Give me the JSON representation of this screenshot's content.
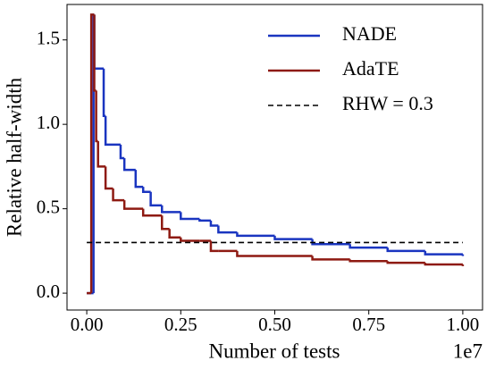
{
  "chart_data": {
    "type": "line",
    "step": "post",
    "xlabel": "Number of tests",
    "ylabel": "Relative half-width",
    "x_offset_label": "1e7",
    "xlim": [
      -525000,
      10525000
    ],
    "ylim": [
      -0.1,
      1.71
    ],
    "xticks": [
      {
        "value": 0,
        "label": "0.00"
      },
      {
        "value": 2500000,
        "label": "0.25"
      },
      {
        "value": 5000000,
        "label": "0.50"
      },
      {
        "value": 7500000,
        "label": "0.75"
      },
      {
        "value": 10000000,
        "label": "1.00"
      }
    ],
    "yticks": [
      {
        "value": 0,
        "label": "0.0"
      },
      0.5,
      {
        "value": 1,
        "label": "1.0"
      },
      1.5
    ],
    "legend": "upper right",
    "series": [
      {
        "name": "NADE",
        "color": "#1a35c0",
        "x": [
          0,
          180000,
          200000,
          450000,
          500000,
          900000,
          1000000,
          1300000,
          1500000,
          1700000,
          2000000,
          2500000,
          3000000,
          3300000,
          3500000,
          4000000,
          5000000,
          6000000,
          7000000,
          8000000,
          9000000,
          10000000
        ],
        "values": [
          0,
          1.65,
          1.33,
          1.05,
          0.88,
          0.8,
          0.73,
          0.63,
          0.6,
          0.52,
          0.48,
          0.44,
          0.43,
          0.4,
          0.36,
          0.34,
          0.32,
          0.29,
          0.27,
          0.25,
          0.23,
          0.22
        ]
      },
      {
        "name": "AdaTE",
        "color": "#8e1a12",
        "x": [
          0,
          120000,
          200000,
          250000,
          300000,
          500000,
          700000,
          1000000,
          1500000,
          2000000,
          2200000,
          2500000,
          3000000,
          3300000,
          3500000,
          4000000,
          5000000,
          6000000,
          7000000,
          8000000,
          9000000,
          10000000
        ],
        "values": [
          0,
          1.65,
          1.2,
          0.9,
          0.75,
          0.62,
          0.55,
          0.5,
          0.46,
          0.38,
          0.33,
          0.31,
          0.31,
          0.25,
          0.25,
          0.22,
          0.22,
          0.2,
          0.19,
          0.18,
          0.17,
          0.16
        ]
      }
    ],
    "reference_lines": [
      {
        "name": "RHW = 0.3",
        "y": 0.3,
        "x_range": [
          0,
          10000000
        ],
        "color": "#000000",
        "dash": true
      }
    ]
  }
}
